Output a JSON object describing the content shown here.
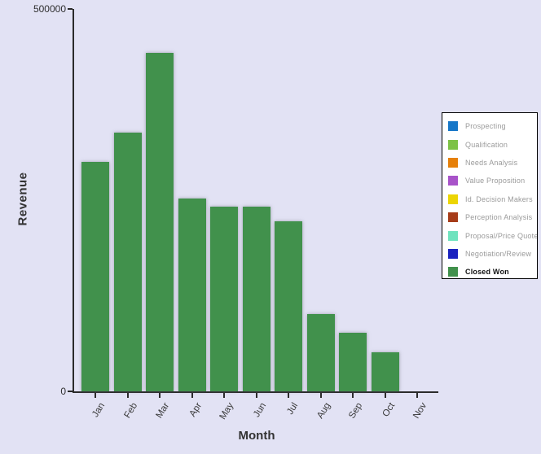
{
  "chart_data": {
    "type": "bar",
    "title": "",
    "xlabel": "Month",
    "ylabel": "Revenue",
    "ylim": [
      0,
      500000
    ],
    "grid": false,
    "legend_position": "right",
    "y_ticks": [
      {
        "value": 500000,
        "label": "500000"
      },
      {
        "value": 0,
        "label": "0"
      }
    ],
    "categories": [
      "Jan",
      "Feb",
      "Mar",
      "Apr",
      "May",
      "Jun",
      "Jul",
      "Aug",
      "Sep",
      "Oct",
      "Nov"
    ],
    "series": [
      {
        "name": "Closed Won",
        "color": "#41914c",
        "values": [
          300000,
          338000,
          443000,
          252000,
          241000,
          241000,
          222000,
          101000,
          77000,
          51000,
          0
        ]
      }
    ]
  },
  "legend": {
    "items": [
      {
        "label": "Prospecting",
        "color": "#1777c8",
        "bold": false
      },
      {
        "label": "Qualification",
        "color": "#7dc246",
        "bold": false
      },
      {
        "label": "Needs Analysis",
        "color": "#e6800a",
        "bold": false
      },
      {
        "label": "Value Proposition",
        "color": "#a853c9",
        "bold": false
      },
      {
        "label": "Id. Decision Makers",
        "color": "#ecd504",
        "bold": false
      },
      {
        "label": "Perception Analysis",
        "color": "#a63c19",
        "bold": false
      },
      {
        "label": "Proposal/Price Quote",
        "color": "#6fe3be",
        "bold": false
      },
      {
        "label": "Negotiation/Review",
        "color": "#1a22bf",
        "bold": false
      },
      {
        "label": "Closed Won",
        "color": "#41914c",
        "bold": true
      }
    ]
  },
  "colors": {
    "background": "#e2e2f4",
    "axis": "#2b2b2b",
    "bar": "#41914c"
  }
}
